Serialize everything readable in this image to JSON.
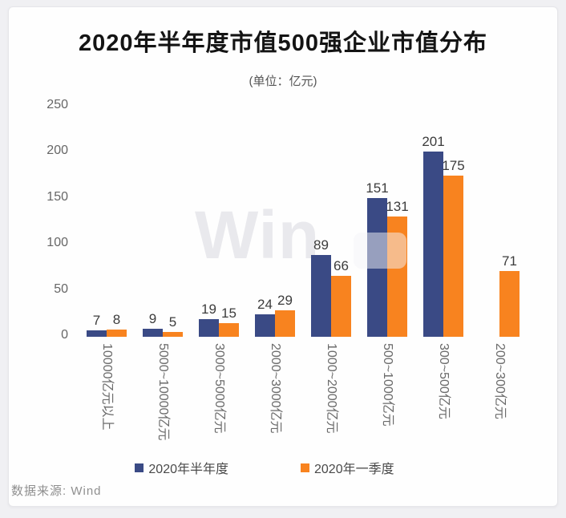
{
  "page": {
    "background": "#f0f0f3",
    "card_background": "#fefefe"
  },
  "header": {
    "title": "2020年半年度市值500强企业市值分布",
    "subtitle": "(单位：亿元)"
  },
  "watermark": {
    "text": "Win",
    "logo": "wind-watermark"
  },
  "footer": {
    "source": "数据来源: Wind"
  },
  "chart_data": {
    "type": "bar",
    "title": "2020年半年度市值500强企业市值分布",
    "unit_note": "(单位：亿元)",
    "categories": [
      "10000亿元以上",
      "5000~10000亿元",
      "3000~5000亿元",
      "2000~3000亿元",
      "1000~2000亿元",
      "500~1000亿元",
      "300~500亿元",
      "200~300亿元"
    ],
    "series": [
      {
        "name": "2020年半年度",
        "color": "#3a4a85",
        "values": [
          7,
          9,
          19,
          24,
          89,
          151,
          201,
          null
        ]
      },
      {
        "name": "2020年一季度",
        "color": "#f8831f",
        "values": [
          8,
          5,
          15,
          29,
          66,
          131,
          175,
          71
        ]
      }
    ],
    "ylim": [
      0,
      250
    ],
    "yticks": [
      0,
      50,
      100,
      150,
      200,
      250
    ],
    "grid": false,
    "value_labels": true,
    "legend_position": "bottom",
    "x_tick_rotation_deg": 90
  }
}
